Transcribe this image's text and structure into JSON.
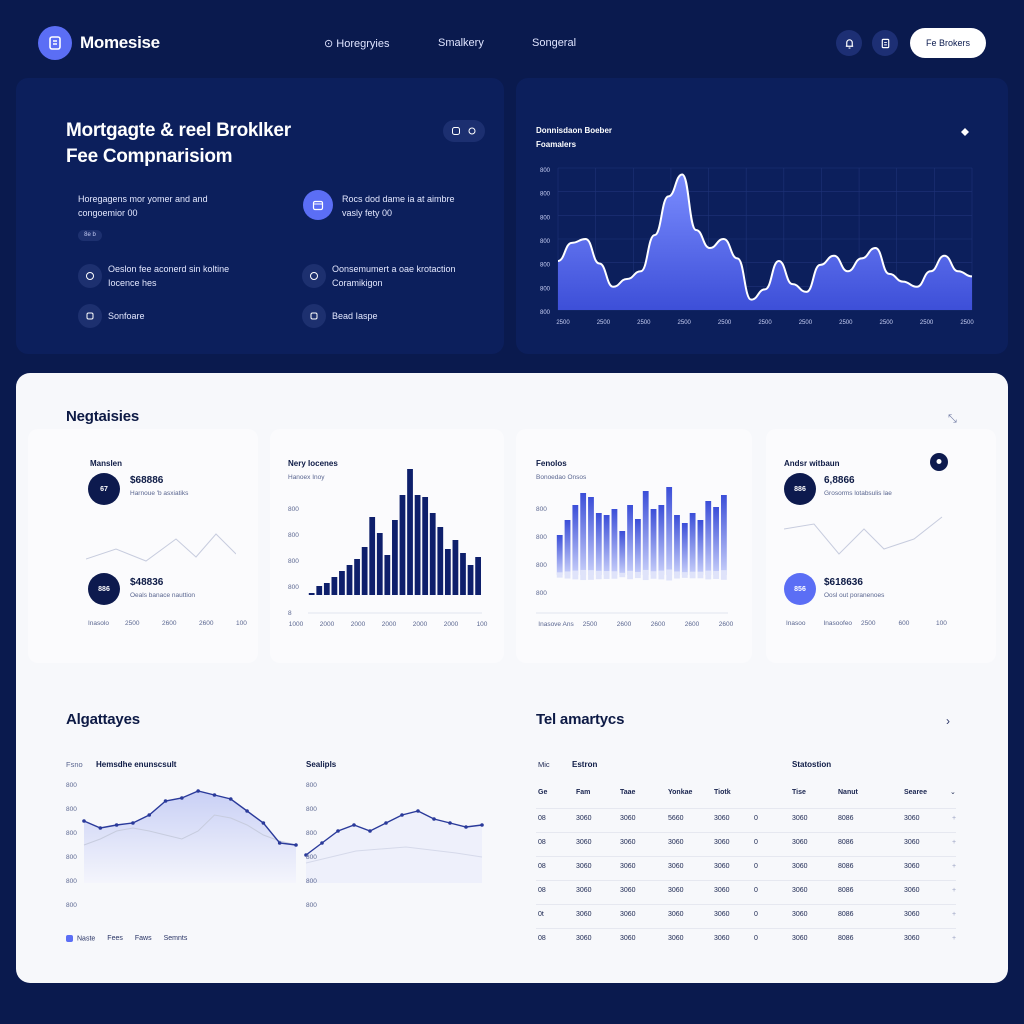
{
  "header": {
    "brand": "Momesise",
    "nav": [
      "Horegryies",
      "Smalkery",
      "Songeral"
    ],
    "cta_label": "Fe Brokers"
  },
  "hero": {
    "title_line1": "Mortgagte & reel Broklker",
    "title_line2": "Fee Compnarisiom",
    "features": [
      {
        "text1": "Horegagens mor yomer and and",
        "text2": "congoemior 00"
      },
      {
        "text1": "Rocs dod dame ia at aimbre",
        "text2": "vasly fety 00"
      },
      {
        "text1": "Oeslon fee aconerd sin koltine",
        "text2": "Iocence hes"
      },
      {
        "text1": "Oonsemumert a oae krotaction",
        "text2": "Coramikigon"
      },
      {
        "text1": "Sonfoare",
        "text2": ""
      },
      {
        "text1": "Bead Iaspe",
        "text2": ""
      }
    ],
    "pill": "8e b"
  },
  "hero_chart": {
    "title": "Donnisdaon Boeber",
    "subtitle": "Foamalers",
    "y_ticks": [
      "800",
      "800",
      "800",
      "800",
      "800",
      "800",
      "800"
    ],
    "x_ticks": [
      "2500",
      "2500",
      "2500",
      "2500",
      "2500",
      "2500",
      "2500",
      "2500",
      "2500",
      "2500",
      "2500"
    ]
  },
  "chart_data": [
    {
      "type": "area",
      "title": "Donnisdaon Boeber",
      "x": [
        0,
        1,
        2,
        3,
        4,
        5,
        6,
        7,
        8,
        9,
        10,
        11,
        12,
        13,
        14,
        15,
        16,
        17,
        18,
        19,
        20,
        21,
        22,
        23,
        24,
        25,
        26,
        27,
        28,
        29,
        30
      ],
      "values": [
        38,
        52,
        55,
        36,
        18,
        24,
        30,
        58,
        88,
        105,
        62,
        48,
        55,
        40,
        8,
        16,
        38,
        20,
        14,
        35,
        42,
        30,
        40,
        48,
        28,
        22,
        18,
        30,
        42,
        30,
        26
      ]
    },
    {
      "type": "bar",
      "title": "Nery Iocenes",
      "values": [
        2,
        9,
        12,
        18,
        24,
        30,
        36,
        48,
        78,
        62,
        40,
        75,
        100,
        126,
        100,
        98,
        82,
        68,
        46,
        55,
        42,
        30,
        38
      ]
    },
    {
      "type": "bar",
      "title": "Fenolos",
      "series": [
        {
          "name": "",
          "values": [
            40,
            55,
            70,
            82,
            78,
            62,
            60,
            66,
            44,
            70,
            56,
            84,
            66,
            70,
            88,
            60,
            52,
            62,
            55,
            74,
            68,
            80
          ]
        },
        {
          "name": "",
          "values": [
            24,
            32,
            40,
            46,
            44,
            38,
            36,
            34,
            20,
            38,
            28,
            46,
            34,
            40,
            50,
            32,
            26,
            30,
            30,
            40,
            36,
            44
          ]
        }
      ]
    },
    {
      "type": "line",
      "title": "Hemsdhe enunscsult",
      "series": [
        {
          "name": "Naste",
          "values": [
            62,
            55,
            58,
            60,
            68,
            82,
            85,
            92,
            88,
            84,
            72,
            60,
            40,
            38
          ]
        },
        {
          "name": "Fees",
          "values": [
            38,
            44,
            52,
            55,
            52,
            48,
            44,
            52,
            68,
            65,
            58,
            48,
            42,
            38
          ]
        }
      ]
    },
    {
      "type": "line",
      "title": "Sealipls",
      "series": [
        {
          "name": "Semnts",
          "values": [
            28,
            40,
            52,
            58,
            52,
            60,
            68,
            72,
            64,
            60,
            56,
            58
          ]
        }
      ]
    }
  ],
  "negtaisies": {
    "title": "Negtaisies",
    "card1": {
      "title": "Manslen",
      "m1_dot": "67",
      "m1_val": "$68886",
      "m1_sub": "Harnoue 'b asxiatiks",
      "m2_dot": "886",
      "m2_val": "$48836",
      "m2_sub": "Oeals banace nauttion",
      "x_ticks": [
        "Inasolo",
        "2500",
        "2600",
        "2600",
        "100"
      ]
    },
    "card2": {
      "title": "Nery Iocenes",
      "sub": "Hanoex   Inoy",
      "y_ticks": [
        "800",
        "800",
        "800",
        "800",
        "8"
      ],
      "x_ticks": [
        "1000",
        "2000",
        "2000",
        "2000",
        "2000",
        "2000",
        "100"
      ]
    },
    "card3": {
      "title": "Fenolos",
      "sub": "Bonoedao   Onsos",
      "y_ticks": [
        "800",
        "800",
        "800",
        "800"
      ],
      "x_ticks": [
        "Inasove Ans",
        "2500",
        "2600",
        "2600",
        "2600",
        "2600"
      ]
    },
    "card4": {
      "title": "Andsr witbaun",
      "m1_dot": "886",
      "m1_val": "6,8866",
      "m1_sub": "Grosorms   lotabsulis lae",
      "m2_dot": "856",
      "m2_val": "$618636",
      "m2_sub": "Oosl out poranenoes",
      "x_ticks": [
        "Inasoo",
        "Inasoofeo",
        "2500",
        "600",
        "100"
      ]
    }
  },
  "algattayes": {
    "title": "Algattayes",
    "legend_label": "Fsno",
    "chart1_title": "Hemsdhe enunscsult",
    "chart2_title": "Sealipls",
    "y_ticks": [
      "800",
      "800",
      "800",
      "800",
      "800",
      "800"
    ],
    "y_ticks2": [
      "800",
      "800",
      "800",
      "800",
      "800",
      "800"
    ],
    "legend": [
      "Naste",
      "Fees",
      "Faws",
      "Semnts"
    ]
  },
  "analytics": {
    "title": "Tel amartycs",
    "group1": "Estron",
    "group0": "Mic",
    "group2": "Statostion",
    "headers": [
      "Ge",
      "Fam",
      "Taae",
      "Yonkae",
      "Tiotk",
      "",
      "Tise",
      "Nanut",
      "Searee"
    ],
    "rows": [
      [
        "08",
        "3060",
        "3060",
        "5660",
        "3060",
        "0",
        "3060",
        "8086",
        "3060"
      ],
      [
        "08",
        "3060",
        "3060",
        "3060",
        "3060",
        "0",
        "3060",
        "8086",
        "3060"
      ],
      [
        "08",
        "3060",
        "3060",
        "3060",
        "3060",
        "0",
        "3060",
        "8086",
        "3060"
      ],
      [
        "08",
        "3060",
        "3060",
        "3060",
        "3060",
        "0",
        "3060",
        "8086",
        "3060"
      ],
      [
        "0t",
        "3060",
        "3060",
        "3060",
        "3060",
        "0",
        "3060",
        "8086",
        "3060"
      ],
      [
        "08",
        "3060",
        "3060",
        "3060",
        "3060",
        "0",
        "3060",
        "8086",
        "3060"
      ]
    ]
  }
}
